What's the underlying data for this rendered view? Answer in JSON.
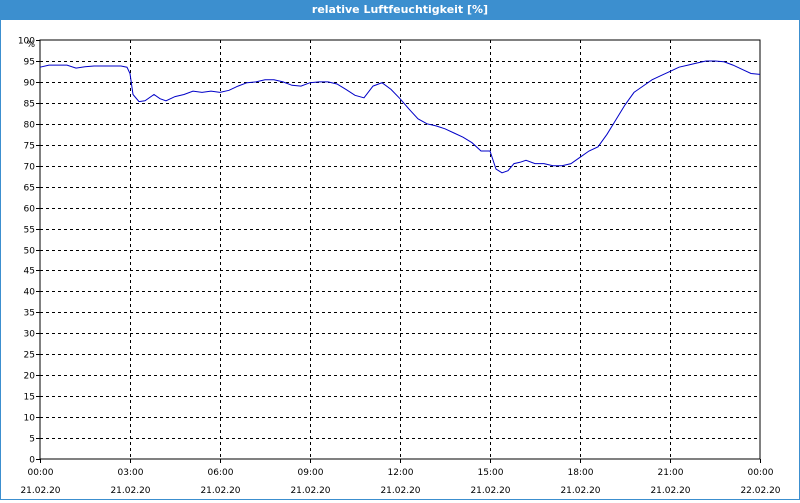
{
  "window": {
    "title": "relative Luftfeuchtigkeit [%]"
  },
  "colors": {
    "titlebar": "#3c8fcf",
    "line": "#0000c8",
    "grid": "#000000"
  },
  "chart_data": {
    "type": "line",
    "title": "relative Luftfeuchtigkeit [%]",
    "y_unit": "%",
    "ylim": [
      0,
      100
    ],
    "y_ticks": [
      0,
      5,
      10,
      15,
      20,
      25,
      30,
      35,
      40,
      45,
      50,
      55,
      60,
      65,
      70,
      75,
      80,
      85,
      90,
      95,
      100
    ],
    "x_ticks": [
      {
        "time": "00:00",
        "date": "21.02.20"
      },
      {
        "time": "03:00",
        "date": "21.02.20"
      },
      {
        "time": "06:00",
        "date": "21.02.20"
      },
      {
        "time": "09:00",
        "date": "21.02.20"
      },
      {
        "time": "12:00",
        "date": "21.02.20"
      },
      {
        "time": "15:00",
        "date": "21.02.20"
      },
      {
        "time": "18:00",
        "date": "21.02.20"
      },
      {
        "time": "21:00",
        "date": "21.02.20"
      },
      {
        "time": "00:00",
        "date": "22.02.20"
      }
    ],
    "grid": true,
    "series": [
      {
        "x": [
          0,
          0.3,
          0.6,
          0.9,
          1.2,
          1.5,
          1.8,
          2.1,
          2.4,
          2.7,
          2.9,
          3.0,
          3.1,
          3.3,
          3.5,
          3.8,
          4.0,
          4.2,
          4.5,
          4.8,
          5.1,
          5.4,
          5.7,
          6.0,
          6.3,
          6.6,
          6.9,
          7.2,
          7.5,
          7.8,
          8.1,
          8.4,
          8.7,
          9.0,
          9.3,
          9.6,
          9.9,
          10.2,
          10.5,
          10.8,
          11.1,
          11.4,
          11.7,
          12.0,
          12.3,
          12.6,
          12.9,
          13.2,
          13.5,
          13.8,
          14.1,
          14.4,
          14.7,
          15.0,
          15.2,
          15.4,
          15.6,
          15.8,
          16.0,
          16.2,
          16.5,
          16.8,
          17.1,
          17.4,
          17.7,
          18.0,
          18.3,
          18.6,
          18.9,
          19.2,
          19.5,
          19.8,
          20.1,
          20.4,
          20.7,
          21.0,
          21.3,
          21.6,
          21.9,
          22.2,
          22.5,
          22.8,
          23.1,
          23.4,
          23.7,
          24.0
        ],
        "y": [
          93.5,
          94,
          94,
          94,
          93.3,
          93.6,
          93.8,
          93.8,
          93.8,
          93.8,
          93.5,
          92,
          87,
          85.3,
          85.5,
          87,
          86,
          85.5,
          86.5,
          87,
          87.8,
          87.5,
          87.8,
          87.5,
          88,
          89,
          89.8,
          90,
          90.5,
          90.5,
          90,
          89.2,
          89,
          89.8,
          90,
          90,
          89.5,
          88.2,
          86.8,
          86.2,
          89,
          89.8,
          88.2,
          86,
          83.5,
          81.2,
          80,
          79.5,
          78.8,
          77.8,
          76.8,
          75.5,
          73.5,
          73.5,
          69.2,
          68.3,
          68.8,
          70.5,
          70.8,
          71.3,
          70.5,
          70.5,
          70,
          70,
          70.5,
          72,
          73.5,
          74.5,
          77.5,
          81,
          84.5,
          87.5,
          89,
          90.5,
          91.5,
          92.5,
          93.5,
          94,
          94.5,
          95,
          95,
          94.8,
          94,
          93,
          92,
          91.8
        ]
      }
    ]
  }
}
